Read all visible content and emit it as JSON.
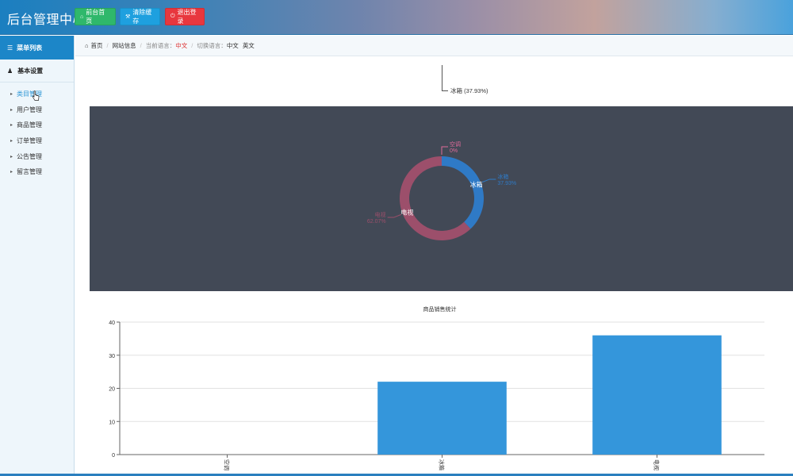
{
  "header": {
    "title": "后台管理中心",
    "buttons": {
      "home": "前台首页",
      "clear_cache": "清除缓存",
      "logout": "退出登录"
    }
  },
  "sidebar": {
    "heading": "菜单列表",
    "group": "基本设置",
    "items": [
      {
        "label": "类目管理",
        "active": true
      },
      {
        "label": "用户管理",
        "active": false
      },
      {
        "label": "商品管理",
        "active": false
      },
      {
        "label": "订单管理",
        "active": false
      },
      {
        "label": "公告管理",
        "active": false
      },
      {
        "label": "留言管理",
        "active": false
      }
    ]
  },
  "breadcrumb": {
    "home": "首页",
    "site_info": "网站信息",
    "current_lang_label": "当前语言：",
    "current_lang_value": "中文",
    "switch_lang_label": "切换语言：",
    "lang_zh": "中文",
    "lang_en": "英文"
  },
  "tooltip": {
    "text": "冰箱 (37.93%)"
  },
  "colors": {
    "accent": "#1c86c8",
    "pie_bg": "#424956",
    "slice_ac": "#e06b9a",
    "slice_fridge": "#2f7ac6",
    "slice_tv": "#9c4f6b",
    "bar": "#3496db"
  },
  "chart_data": [
    {
      "type": "pie",
      "donut": true,
      "slices": [
        {
          "name": "空调",
          "value": 0,
          "percent_label": "0%"
        },
        {
          "name": "冰箱",
          "value": 22,
          "percent_label": "37.93%"
        },
        {
          "name": "电视",
          "value": 36,
          "percent_label": "62.07%"
        }
      ]
    },
    {
      "type": "bar",
      "title": "商品销售统计",
      "categories": [
        "空调",
        "冰箱",
        "电视"
      ],
      "values": [
        0,
        22,
        36
      ],
      "ylim": [
        0,
        40
      ],
      "yticks": [
        0,
        10,
        20,
        30,
        40
      ],
      "grid": true
    }
  ]
}
